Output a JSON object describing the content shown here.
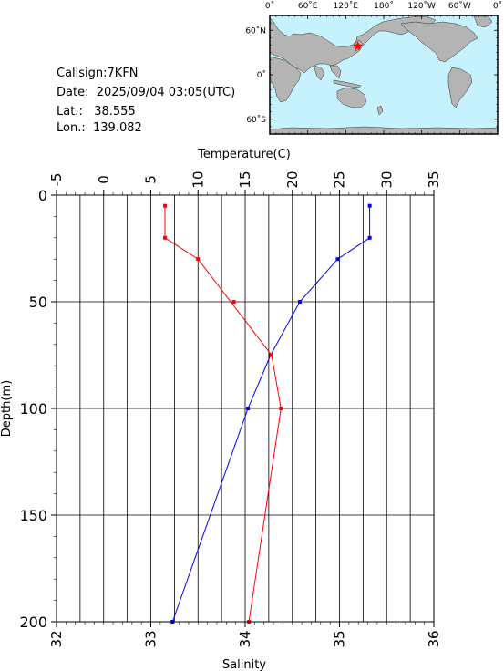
{
  "header": {
    "callsign_label": "Callsign:",
    "callsign": "7KFN",
    "date_label": "Date:",
    "date": "2025/09/04 03:05(UTC)",
    "lat_label": "Lat.:",
    "lat": "38.555",
    "lon_label": "Lon.:",
    "lon": "139.082"
  },
  "map": {
    "lon_ticks": [
      "0˚",
      "60˚E",
      "120˚E",
      "180˚",
      "120˚W",
      "60˚W",
      "0˚"
    ],
    "lat_ticks": [
      "60˚N",
      "0˚",
      "60˚S"
    ],
    "ocean_color": "#c6f2fd",
    "land_color": "#b4b4b4",
    "marker_color": "#ff0000",
    "marker_lat": 38.555,
    "marker_lon": 139.082
  },
  "chart_data": {
    "type": "line",
    "ylabel": "Depth(m)",
    "ylim": [
      0,
      200
    ],
    "yticks": [
      0,
      50,
      100,
      150,
      200
    ],
    "y_inverted": true,
    "grid": true,
    "top_axis": {
      "label": "Temperature(C)",
      "lim": [
        -5,
        35
      ],
      "ticks": [
        -5,
        0,
        5,
        10,
        15,
        20,
        25,
        30,
        35
      ]
    },
    "bottom_axis": {
      "label": "Salinity",
      "lim": [
        32,
        36
      ],
      "ticks": [
        32,
        33,
        34,
        35,
        36
      ]
    },
    "series": [
      {
        "axis": "top",
        "color": "#0000ff",
        "depth": [
          5,
          20,
          30,
          50,
          75,
          100,
          200
        ],
        "values": [
          28.2,
          28.2,
          24.8,
          20.8,
          17.7,
          15.3,
          7.3
        ]
      },
      {
        "axis": "bottom",
        "color": "#ff0000",
        "depth": [
          5,
          20,
          30,
          75,
          100,
          200
        ],
        "values": [
          33.15,
          33.15,
          33.5,
          34.28,
          34.38,
          34.04
        ],
        "markers_at": [
          5,
          20,
          30,
          50,
          75,
          100,
          200
        ],
        "value_at_50": 33.88
      }
    ]
  }
}
